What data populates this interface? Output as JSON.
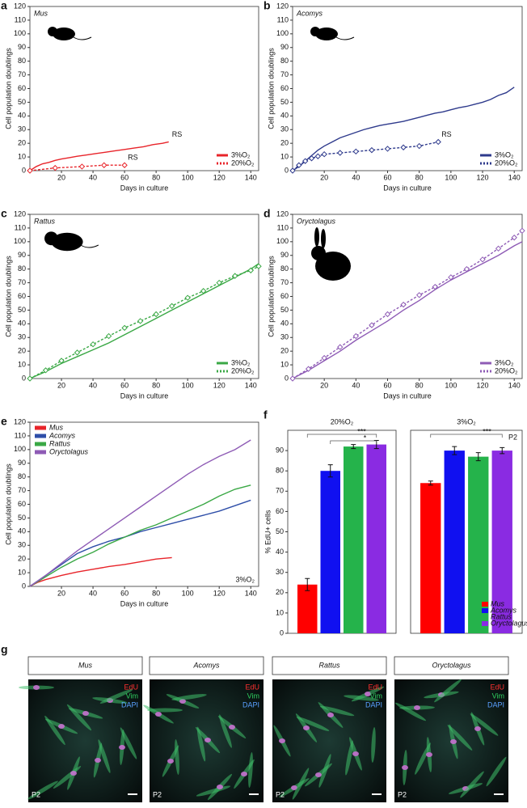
{
  "chart_data": [
    {
      "type": "line",
      "panel_label": "a",
      "title": "Mus",
      "xlabel": "Days in culture",
      "ylabel": "Cell population doublings",
      "xlim": [
        0,
        145
      ],
      "xticks": [
        20,
        40,
        60,
        80,
        100,
        120,
        140
      ],
      "ylim": [
        0,
        120
      ],
      "yticks": [
        0,
        10,
        20,
        30,
        40,
        50,
        60,
        70,
        80,
        90,
        100,
        110,
        120
      ],
      "legend": "bottom-right",
      "series": [
        {
          "name": "3%O₂",
          "color": "#e8242a",
          "dash": false,
          "end_label": "RS",
          "x": [
            0,
            4,
            8,
            12,
            16,
            20,
            25,
            30,
            36,
            42,
            48,
            54,
            60,
            66,
            72,
            78,
            84,
            88
          ],
          "values": [
            0,
            3,
            5,
            6,
            7.5,
            8.5,
            9.5,
            10.5,
            11.5,
            12.5,
            13.5,
            14.5,
            15.5,
            16.5,
            17.5,
            19,
            20,
            21
          ]
        },
        {
          "name": "20%O₂",
          "color": "#e8242a",
          "dash": true,
          "marker": "diamond",
          "end_label": "RS",
          "x": [
            0,
            16,
            33,
            47,
            60
          ],
          "values": [
            0,
            2,
            3,
            4,
            4
          ]
        }
      ]
    },
    {
      "type": "line",
      "panel_label": "b",
      "title": "Acomys",
      "xlabel": "Days in culture",
      "ylabel": "Cell population doublings",
      "xlim": [
        0,
        145
      ],
      "xticks": [
        20,
        40,
        60,
        80,
        100,
        120,
        140
      ],
      "ylim": [
        0,
        120
      ],
      "yticks": [
        0,
        10,
        20,
        30,
        40,
        50,
        60,
        70,
        80,
        90,
        100,
        110,
        120
      ],
      "legend": "bottom-right",
      "series": [
        {
          "name": "3%O₂",
          "color": "#2e3a8c",
          "dash": false,
          "x": [
            0,
            4,
            8,
            12,
            16,
            20,
            25,
            30,
            35,
            40,
            45,
            50,
            55,
            60,
            65,
            70,
            75,
            80,
            85,
            90,
            95,
            100,
            105,
            110,
            115,
            120,
            125,
            130,
            135,
            140
          ],
          "values": [
            0,
            3,
            7,
            11,
            15,
            18,
            21,
            24,
            26,
            28,
            30,
            31.5,
            33,
            34,
            35,
            36,
            37.5,
            39,
            40.5,
            42,
            43,
            44.5,
            46,
            47,
            48.5,
            50,
            52,
            55,
            57,
            61
          ]
        },
        {
          "name": "20%O₂",
          "color": "#2e3a8c",
          "dash": true,
          "marker": "diamond",
          "end_label": "RS",
          "x": [
            0,
            4,
            8,
            12,
            16,
            20,
            30,
            40,
            50,
            60,
            70,
            80,
            92
          ],
          "values": [
            0,
            4,
            7,
            9,
            10.5,
            12,
            13,
            14,
            15,
            16,
            17,
            18,
            21
          ]
        }
      ]
    },
    {
      "type": "line",
      "panel_label": "c",
      "title": "Rattus",
      "xlabel": "Days in culture",
      "ylabel": "Cell population doublings",
      "xlim": [
        0,
        145
      ],
      "xticks": [
        20,
        40,
        60,
        80,
        100,
        120,
        140
      ],
      "ylim": [
        0,
        120
      ],
      "yticks": [
        0,
        10,
        20,
        30,
        40,
        50,
        60,
        70,
        80,
        90,
        100,
        110,
        120
      ],
      "legend": "bottom-right",
      "series": [
        {
          "name": "3%O₂",
          "color": "#3aa845",
          "dash": false,
          "x": [
            0,
            10,
            20,
            30,
            40,
            50,
            60,
            70,
            80,
            90,
            100,
            110,
            120,
            130,
            140,
            145
          ],
          "values": [
            0,
            5,
            11,
            16,
            21,
            26,
            32,
            38,
            44,
            50,
            56,
            62,
            68,
            74,
            80,
            84
          ]
        },
        {
          "name": "20%O₂",
          "color": "#3aa845",
          "dash": true,
          "marker": "diamond",
          "x": [
            0,
            10,
            20,
            30,
            40,
            50,
            60,
            70,
            80,
            90,
            100,
            110,
            120,
            130,
            140,
            145
          ],
          "values": [
            0,
            6,
            13,
            19,
            25,
            31,
            37,
            42,
            47,
            53,
            59,
            64,
            70,
            75,
            79,
            82
          ]
        }
      ]
    },
    {
      "type": "line",
      "panel_label": "d",
      "title": "Oryctolagus",
      "xlabel": "Days in culture",
      "ylabel": "Cell population doublings",
      "xlim": [
        0,
        145
      ],
      "xticks": [
        20,
        40,
        60,
        80,
        100,
        120,
        140
      ],
      "ylim": [
        0,
        120
      ],
      "yticks": [
        0,
        10,
        20,
        30,
        40,
        50,
        60,
        70,
        80,
        90,
        100,
        110,
        120
      ],
      "legend": "bottom-right",
      "series": [
        {
          "name": "3%O₂",
          "color": "#8e5bb5",
          "dash": false,
          "x": [
            0,
            10,
            20,
            30,
            40,
            50,
            60,
            70,
            80,
            90,
            100,
            110,
            120,
            130,
            140,
            145
          ],
          "values": [
            0,
            6,
            13,
            20,
            28,
            35,
            42,
            50,
            57,
            65,
            72,
            78,
            84,
            90,
            97,
            100
          ]
        },
        {
          "name": "20%O₂",
          "color": "#8e5bb5",
          "dash": true,
          "marker": "diamond",
          "x": [
            0,
            10,
            20,
            30,
            40,
            50,
            60,
            70,
            80,
            90,
            100,
            110,
            120,
            130,
            140,
            145
          ],
          "values": [
            0,
            7,
            15,
            23,
            31,
            39,
            47,
            54,
            61,
            67,
            74,
            80,
            87,
            95,
            103,
            108
          ]
        }
      ]
    },
    {
      "type": "line",
      "panel_label": "e",
      "xlabel": "Days in culture",
      "ylabel": "Cell population doublings",
      "note": "3%O₂",
      "xlim": [
        0,
        145
      ],
      "xticks": [
        20,
        40,
        60,
        80,
        100,
        120,
        140
      ],
      "ylim": [
        0,
        120
      ],
      "yticks": [
        0,
        10,
        20,
        30,
        40,
        50,
        60,
        70,
        80,
        90,
        100,
        110,
        120
      ],
      "legend": "top-left",
      "series": [
        {
          "name": "Mus",
          "color": "#e8242a",
          "dash": false,
          "x": [
            0,
            5,
            10,
            20,
            30,
            40,
            50,
            60,
            70,
            80,
            90
          ],
          "values": [
            0,
            3,
            5,
            8,
            10.5,
            12.5,
            14.5,
            16,
            18,
            20,
            21
          ]
        },
        {
          "name": "Acomys",
          "color": "#2e4ea8",
          "dash": false,
          "x": [
            0,
            10,
            20,
            30,
            40,
            50,
            60,
            70,
            80,
            90,
            100,
            110,
            120,
            130,
            140
          ],
          "values": [
            0,
            8,
            16,
            24,
            29,
            33,
            36,
            40,
            43,
            46,
            49,
            52,
            55,
            59,
            63
          ]
        },
        {
          "name": "Rattus",
          "color": "#3aa845",
          "dash": false,
          "x": [
            0,
            10,
            20,
            30,
            40,
            50,
            60,
            70,
            80,
            90,
            100,
            110,
            120,
            130,
            140
          ],
          "values": [
            0,
            7,
            14,
            20,
            25,
            31,
            36,
            41,
            45,
            50,
            55,
            60,
            66,
            71,
            74
          ]
        },
        {
          "name": "Oryctolagus",
          "color": "#8e5bb5",
          "dash": false,
          "x": [
            0,
            10,
            20,
            30,
            40,
            50,
            60,
            70,
            80,
            90,
            100,
            110,
            120,
            130,
            140
          ],
          "values": [
            0,
            8,
            17,
            26,
            34,
            42,
            50,
            58,
            66,
            74,
            82,
            89,
            95,
            100,
            107
          ]
        }
      ]
    },
    {
      "type": "bar",
      "panel_label": "f",
      "title": "20%O₂",
      "ylabel": "% EdU+ cells",
      "ylim": [
        0,
        100
      ],
      "yticks": [
        0,
        10,
        20,
        30,
        40,
        50,
        60,
        70,
        80,
        90
      ],
      "colors": [
        "#ff0000",
        "#1010f0",
        "#25b34b",
        "#8a2be2"
      ],
      "values": [
        24,
        80,
        92,
        93
      ],
      "errors": [
        3,
        3,
        1,
        2
      ],
      "annotations": [
        "***",
        "*"
      ]
    },
    {
      "type": "bar",
      "title": "3%O₂",
      "note": "P2",
      "ylim": [
        0,
        100
      ],
      "legend": "bottom-right",
      "categories": [
        "Mus",
        "Acomys",
        "Rattus",
        "Oryctolagus"
      ],
      "colors": [
        "#ff0000",
        "#1010f0",
        "#25b34b",
        "#8a2be2"
      ],
      "values": [
        74,
        90,
        87,
        90
      ],
      "errors": [
        1,
        2,
        2,
        1.5
      ],
      "annotations": [
        "***"
      ]
    }
  ],
  "panel_g": {
    "panel_label": "g",
    "images": [
      {
        "species": "Mus",
        "channels": [
          "EdU",
          "Vim",
          "DAPI"
        ],
        "passage": "P2"
      },
      {
        "species": "Acomys",
        "channels": [
          "EdU",
          "Vim",
          "DAPI"
        ],
        "passage": "P2"
      },
      {
        "species": "Rattus",
        "channels": [
          "EdU",
          "Vim",
          "DAPI"
        ],
        "passage": "P2"
      },
      {
        "species": "Oryctolagus",
        "channels": [
          "EdU",
          "Vim",
          "DAPI"
        ],
        "passage": "P2"
      }
    ]
  }
}
